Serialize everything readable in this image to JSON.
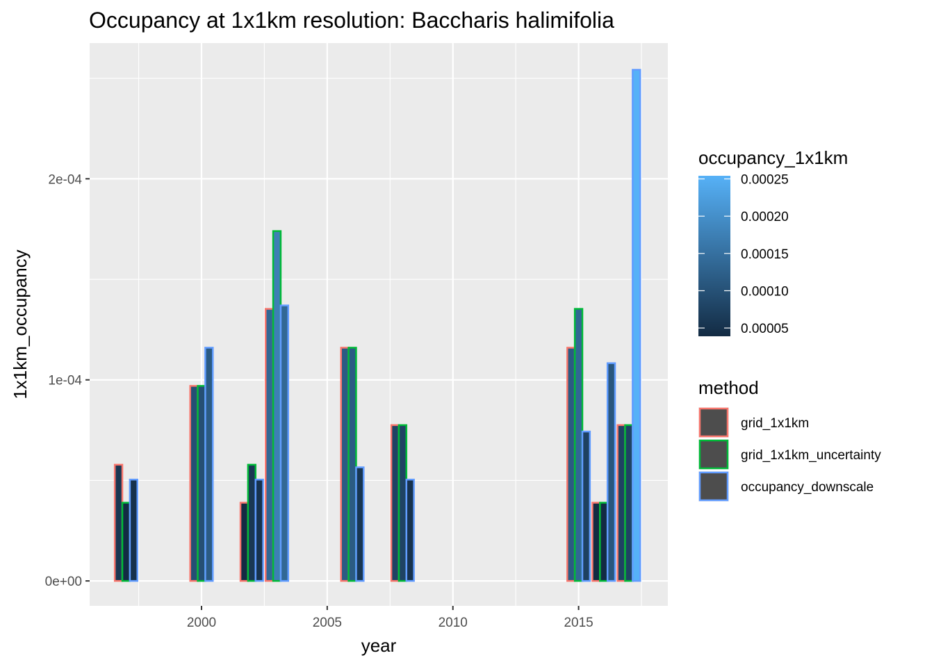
{
  "chart_data": {
    "type": "bar",
    "title": "Occupancy at 1x1km resolution: Baccharis halimifolia",
    "xlabel": "year",
    "ylabel": "1x1km_occupancy",
    "x_ticks": [
      2000,
      2005,
      2010,
      2015
    ],
    "x_tick_labels": [
      "2000",
      "2005",
      "2010",
      "2015"
    ],
    "y_ticks": [
      0,
      0.0001,
      0.0002
    ],
    "y_tick_labels": [
      "0e+00",
      "1e-04",
      "2e-04"
    ],
    "xlim": [
      1995.55,
      2018.55
    ],
    "ylim": [
      -1.24e-05,
      0.0002675
    ],
    "grid": true,
    "bar_group_width": 0.9,
    "methods": [
      "grid_1x1km",
      "grid_1x1km_uncertainty",
      "occupancy_downscale"
    ],
    "series": [
      {
        "name": "grid_1x1km",
        "outline_color": "#f8766d",
        "points": [
          {
            "year": 1997,
            "value": 5.78e-05
          },
          {
            "year": 2000,
            "value": 9.7e-05
          },
          {
            "year": 2002,
            "value": 3.89e-05
          },
          {
            "year": 2003,
            "value": 0.0001353
          },
          {
            "year": 2006,
            "value": 0.000116
          },
          {
            "year": 2008,
            "value": 7.75e-05
          },
          {
            "year": 2015,
            "value": 0.000116
          },
          {
            "year": 2016,
            "value": 3.89e-05
          },
          {
            "year": 2017,
            "value": 7.75e-05
          }
        ]
      },
      {
        "name": "grid_1x1km_uncertainty",
        "outline_color": "#00ba38",
        "points": [
          {
            "year": 1997,
            "value": 3.89e-05
          },
          {
            "year": 2000,
            "value": 9.7e-05
          },
          {
            "year": 2002,
            "value": 5.78e-05
          },
          {
            "year": 2003,
            "value": 0.000174
          },
          {
            "year": 2006,
            "value": 0.000116
          },
          {
            "year": 2008,
            "value": 7.75e-05
          },
          {
            "year": 2015,
            "value": 0.0001353
          },
          {
            "year": 2016,
            "value": 3.89e-05
          },
          {
            "year": 2017,
            "value": 7.75e-05
          }
        ]
      },
      {
        "name": "occupancy_downscale",
        "outline_color": "#619cff",
        "points": [
          {
            "year": 1997,
            "value": 5.04e-05
          },
          {
            "year": 2000,
            "value": 0.000116
          },
          {
            "year": 2002,
            "value": 5.04e-05
          },
          {
            "year": 2003,
            "value": 0.000137
          },
          {
            "year": 2006,
            "value": 5.65e-05
          },
          {
            "year": 2008,
            "value": 5.04e-05
          },
          {
            "year": 2015,
            "value": 7.43e-05
          },
          {
            "year": 2016,
            "value": 0.0001083
          },
          {
            "year": 2017,
            "value": 0.0002542
          }
        ]
      }
    ],
    "fill_legend": {
      "title": "occupancy_1x1km",
      "low_color": "#132b43",
      "high_color": "#56b1f7",
      "range": [
        3.89e-05,
        0.0002542
      ],
      "breaks": [
        5e-05,
        0.0001,
        0.00015,
        0.0002,
        0.00025
      ],
      "break_labels": [
        "0.00005",
        "0.00010",
        "0.00015",
        "0.00020",
        "0.00025"
      ]
    },
    "color_legend": {
      "title": "method",
      "entries": [
        "grid_1x1km",
        "grid_1x1km_uncertainty",
        "occupancy_downscale"
      ],
      "colors": [
        "#f8766d",
        "#00ba38",
        "#619cff"
      ],
      "key_fill": "#4d4d4d"
    },
    "panel_background": "#ebebeb",
    "grid_color": "#ffffff"
  }
}
